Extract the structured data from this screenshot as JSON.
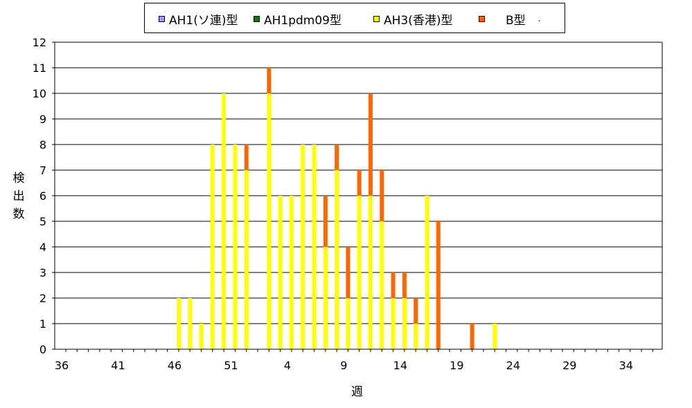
{
  "chart_data": {
    "type": "bar",
    "stacked": true,
    "ylabel": "検出数",
    "xlabel": "週",
    "ylim": [
      0,
      12
    ],
    "yticks": [
      0,
      1,
      2,
      3,
      4,
      5,
      6,
      7,
      8,
      9,
      10,
      11,
      12
    ],
    "x_tick_labels": [
      "36",
      "41",
      "46",
      "51",
      "4",
      "9",
      "14",
      "19",
      "24",
      "29",
      "34"
    ],
    "x_tick_every": 5,
    "x": [
      "36",
      "37",
      "38",
      "39",
      "40",
      "41",
      "42",
      "43",
      "44",
      "45",
      "46",
      "47",
      "48",
      "49",
      "50",
      "51",
      "52",
      "53",
      "1",
      "2",
      "3",
      "4",
      "5",
      "6",
      "7",
      "8",
      "9",
      "10",
      "11",
      "12",
      "13",
      "14",
      "15",
      "16",
      "17",
      "18",
      "19",
      "20",
      "21",
      "22",
      "23",
      "24",
      "25",
      "26",
      "27",
      "28",
      "29",
      "30",
      "31",
      "32",
      "33",
      "34",
      "35"
    ],
    "legend_position": "top",
    "grid": true,
    "series": [
      {
        "name": "AH1(ソ連)型",
        "color": "#9999ff",
        "values": [
          0,
          0,
          0,
          0,
          0,
          0,
          0,
          0,
          0,
          0,
          0,
          0,
          0,
          0,
          0,
          0,
          0,
          0,
          0,
          0,
          0,
          0,
          0,
          0,
          0,
          0,
          0,
          0,
          0,
          0,
          0,
          0,
          0,
          0,
          0,
          0,
          0,
          0,
          0,
          0,
          0,
          0,
          0,
          0,
          0,
          0,
          0,
          0,
          0,
          0,
          0,
          0,
          0
        ]
      },
      {
        "name": "AH1pdm09型",
        "color": "#008000",
        "values": [
          0,
          0,
          0,
          0,
          0,
          0,
          0,
          0,
          0,
          0,
          0,
          0,
          0,
          0,
          0,
          0,
          0,
          0,
          0,
          0,
          0,
          0,
          0,
          0,
          0,
          0,
          0,
          0,
          0,
          0,
          0,
          0,
          0,
          0,
          0,
          0,
          0,
          0,
          0,
          0,
          0,
          0,
          0,
          0,
          0,
          0,
          0,
          0,
          0,
          0,
          0,
          0,
          0
        ]
      },
      {
        "name": "AH3(香港)型",
        "color": "#ffff00",
        "values": [
          0,
          0,
          0,
          0,
          0,
          0,
          0,
          0,
          0,
          0,
          2,
          2,
          1,
          8,
          10,
          8,
          7,
          0,
          10,
          6,
          6,
          8,
          8,
          4,
          7,
          2,
          6,
          6,
          5,
          2,
          2,
          1,
          6,
          0,
          0,
          0,
          0,
          0,
          1,
          0,
          0,
          0,
          0,
          0,
          0,
          0,
          0,
          0,
          0,
          0,
          0,
          0,
          0
        ]
      },
      {
        "name": "B型",
        "color": "#ff6600",
        "values": [
          0,
          0,
          0,
          0,
          0,
          0,
          0,
          0,
          0,
          0,
          0,
          0,
          0,
          0,
          0,
          0,
          1,
          0,
          1,
          0,
          0,
          0,
          0,
          2,
          1,
          2,
          1,
          4,
          2,
          1,
          1,
          1,
          0,
          5,
          0,
          0,
          1,
          0,
          0,
          0,
          0,
          0,
          0,
          0,
          0,
          0,
          0,
          0,
          0,
          0,
          0,
          0,
          0
        ]
      }
    ],
    "legend_trailing_text": "."
  }
}
